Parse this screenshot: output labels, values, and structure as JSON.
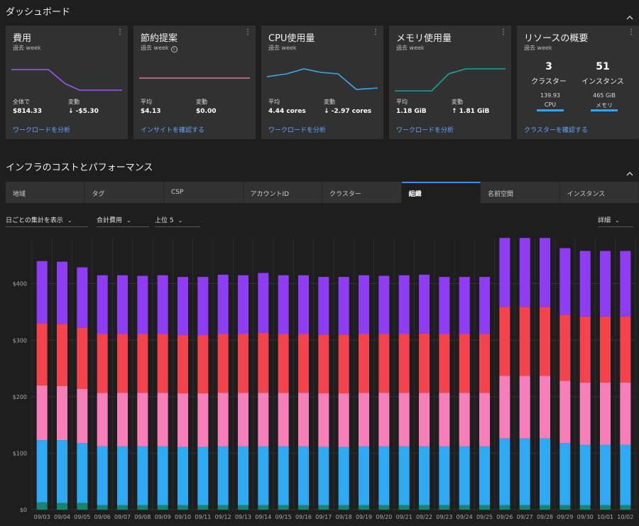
{
  "dashboard": {
    "title": "ダッシュボード",
    "cards": [
      {
        "title": "費用",
        "sub": "過去 week",
        "stats": [
          {
            "label": "全体で",
            "value": "$814.33"
          },
          {
            "label": "変動",
            "value": "↓ -$5.30"
          }
        ],
        "link": "ワークロードを分析",
        "spark_color": "#9b59f0"
      },
      {
        "title": "節約提案",
        "sub": "過去 week",
        "stats": [
          {
            "label": "平均",
            "value": "$4.13"
          },
          {
            "label": "変動",
            "value": "$0.00"
          }
        ],
        "link": "インサイトを確認する",
        "spark_color": "#f06a8a"
      },
      {
        "title": "CPU使用量",
        "sub": "過去 week",
        "stats": [
          {
            "label": "平均",
            "value": "4.44 cores"
          },
          {
            "label": "変動",
            "value": "↓ -2.97 cores"
          }
        ],
        "link": "ワークロードを分析",
        "spark_color": "#3aa8e8"
      },
      {
        "title": "メモリ使用量",
        "sub": "過去 week",
        "stats": [
          {
            "label": "平均",
            "value": "1.18 GiB"
          },
          {
            "label": "変動",
            "value": "↑ 1.81 GiB"
          }
        ],
        "link": "ワークロードを分析",
        "spark_color": "#1aa39a"
      },
      {
        "title": "リソースの概要",
        "sub": "過去 week",
        "clusters_count": "3",
        "clusters_label": "クラスター",
        "instances_count": "51",
        "instances_label": "インスタンス",
        "cpu_value": "139.93",
        "cpu_label": "CPU",
        "mem_value": "465 GiB",
        "mem_label": "メモリ",
        "link": "クラスターを確認する"
      }
    ]
  },
  "infra": {
    "title": "インフラのコストとパフォーマンス",
    "tabs": [
      "地域",
      "タグ",
      "CSP",
      "アカウントID",
      "クラスター",
      "組織",
      "名前空間",
      "インスタンス"
    ],
    "active_tab": 5,
    "filters": {
      "aggregation": "日ごとの集計を表示",
      "metric": "合計費用",
      "top": "上位 5",
      "detail": "詳細"
    }
  },
  "chart_data": {
    "type": "bar",
    "stacked": true,
    "ylim": [
      0,
      480
    ],
    "yticks": [
      0,
      100,
      200,
      300,
      400
    ],
    "ytick_labels": [
      "$0",
      "$100",
      "$200",
      "$300",
      "$400"
    ],
    "categories": [
      "09/03",
      "09/04",
      "09/05",
      "09/06",
      "09/07",
      "09/08",
      "09/09",
      "09/10",
      "09/11",
      "09/12",
      "09/13",
      "09/14",
      "09/15",
      "09/16",
      "09/17",
      "09/18",
      "09/19",
      "09/20",
      "09/21",
      "09/22",
      "09/23",
      "09/24",
      "09/25",
      "09/26",
      "09/27",
      "09/28",
      "09/29",
      "09/30",
      "10/01",
      "10/02"
    ],
    "series": [
      {
        "color": "#14866f",
        "values": [
          13,
          12,
          12,
          8,
          8,
          8,
          8,
          8,
          8,
          8,
          8,
          8,
          8,
          8,
          8,
          8,
          8,
          8,
          8,
          8,
          8,
          8,
          8,
          8,
          8,
          8,
          8,
          8,
          8,
          8
        ]
      },
      {
        "color": "#2eaaf5",
        "values": [
          110,
          111,
          106,
          104,
          104,
          104,
          104,
          103,
          103,
          104,
          104,
          104,
          104,
          104,
          103,
          103,
          104,
          104,
          104,
          104,
          104,
          104,
          104,
          118,
          118,
          118,
          110,
          107,
          107,
          107
        ]
      },
      {
        "color": "#f77eb9",
        "values": [
          97,
          96,
          96,
          95,
          95,
          95,
          95,
          95,
          95,
          95,
          95,
          95,
          95,
          95,
          95,
          95,
          95,
          95,
          95,
          95,
          95,
          95,
          95,
          111,
          111,
          111,
          110,
          110,
          110,
          110
        ]
      },
      {
        "color": "#f5434d",
        "values": [
          110,
          110,
          108,
          104,
          104,
          104,
          104,
          103,
          103,
          104,
          104,
          106,
          104,
          104,
          104,
          104,
          104,
          104,
          104,
          105,
          104,
          104,
          104,
          122,
          122,
          122,
          117,
          117,
          117,
          117
        ]
      },
      {
        "color": "#8f3df5",
        "values": [
          110,
          110,
          107,
          104,
          104,
          103,
          104,
          103,
          103,
          105,
          104,
          106,
          104,
          104,
          102,
          102,
          104,
          103,
          104,
          104,
          101,
          101,
          101,
          122,
          122,
          122,
          118,
          116,
          116,
          116
        ]
      }
    ]
  }
}
